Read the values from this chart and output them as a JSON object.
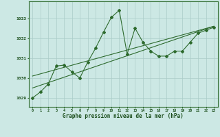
{
  "hours": [
    0,
    1,
    2,
    3,
    4,
    5,
    6,
    7,
    8,
    9,
    10,
    11,
    12,
    13,
    14,
    15,
    16,
    17,
    18,
    19,
    20,
    21,
    22,
    23
  ],
  "pressure": [
    1029.0,
    1029.3,
    1029.7,
    1030.6,
    1030.65,
    1030.3,
    1030.0,
    1030.8,
    1031.5,
    1032.3,
    1033.05,
    1033.4,
    1031.2,
    1032.5,
    1031.8,
    1031.35,
    1031.1,
    1031.1,
    1031.35,
    1031.35,
    1031.8,
    1032.25,
    1032.4,
    1032.55
  ],
  "trend1_x": [
    0,
    23
  ],
  "trend1_y": [
    1029.5,
    1032.6
  ],
  "trend2_x": [
    0,
    23
  ],
  "trend2_y": [
    1030.1,
    1032.6
  ],
  "bg_color": "#cce8e4",
  "line_color": "#2d6a2d",
  "grid_color": "#aaccc8",
  "xlabel": "Graphe pression niveau de la mer (hPa)",
  "ylabel_ticks": [
    1029,
    1030,
    1031,
    1032,
    1033
  ],
  "xlim": [
    -0.5,
    23.5
  ],
  "ylim": [
    1028.55,
    1033.85
  ],
  "xlabel_color": "#1a4d1a",
  "tick_color": "#1a4d1a"
}
